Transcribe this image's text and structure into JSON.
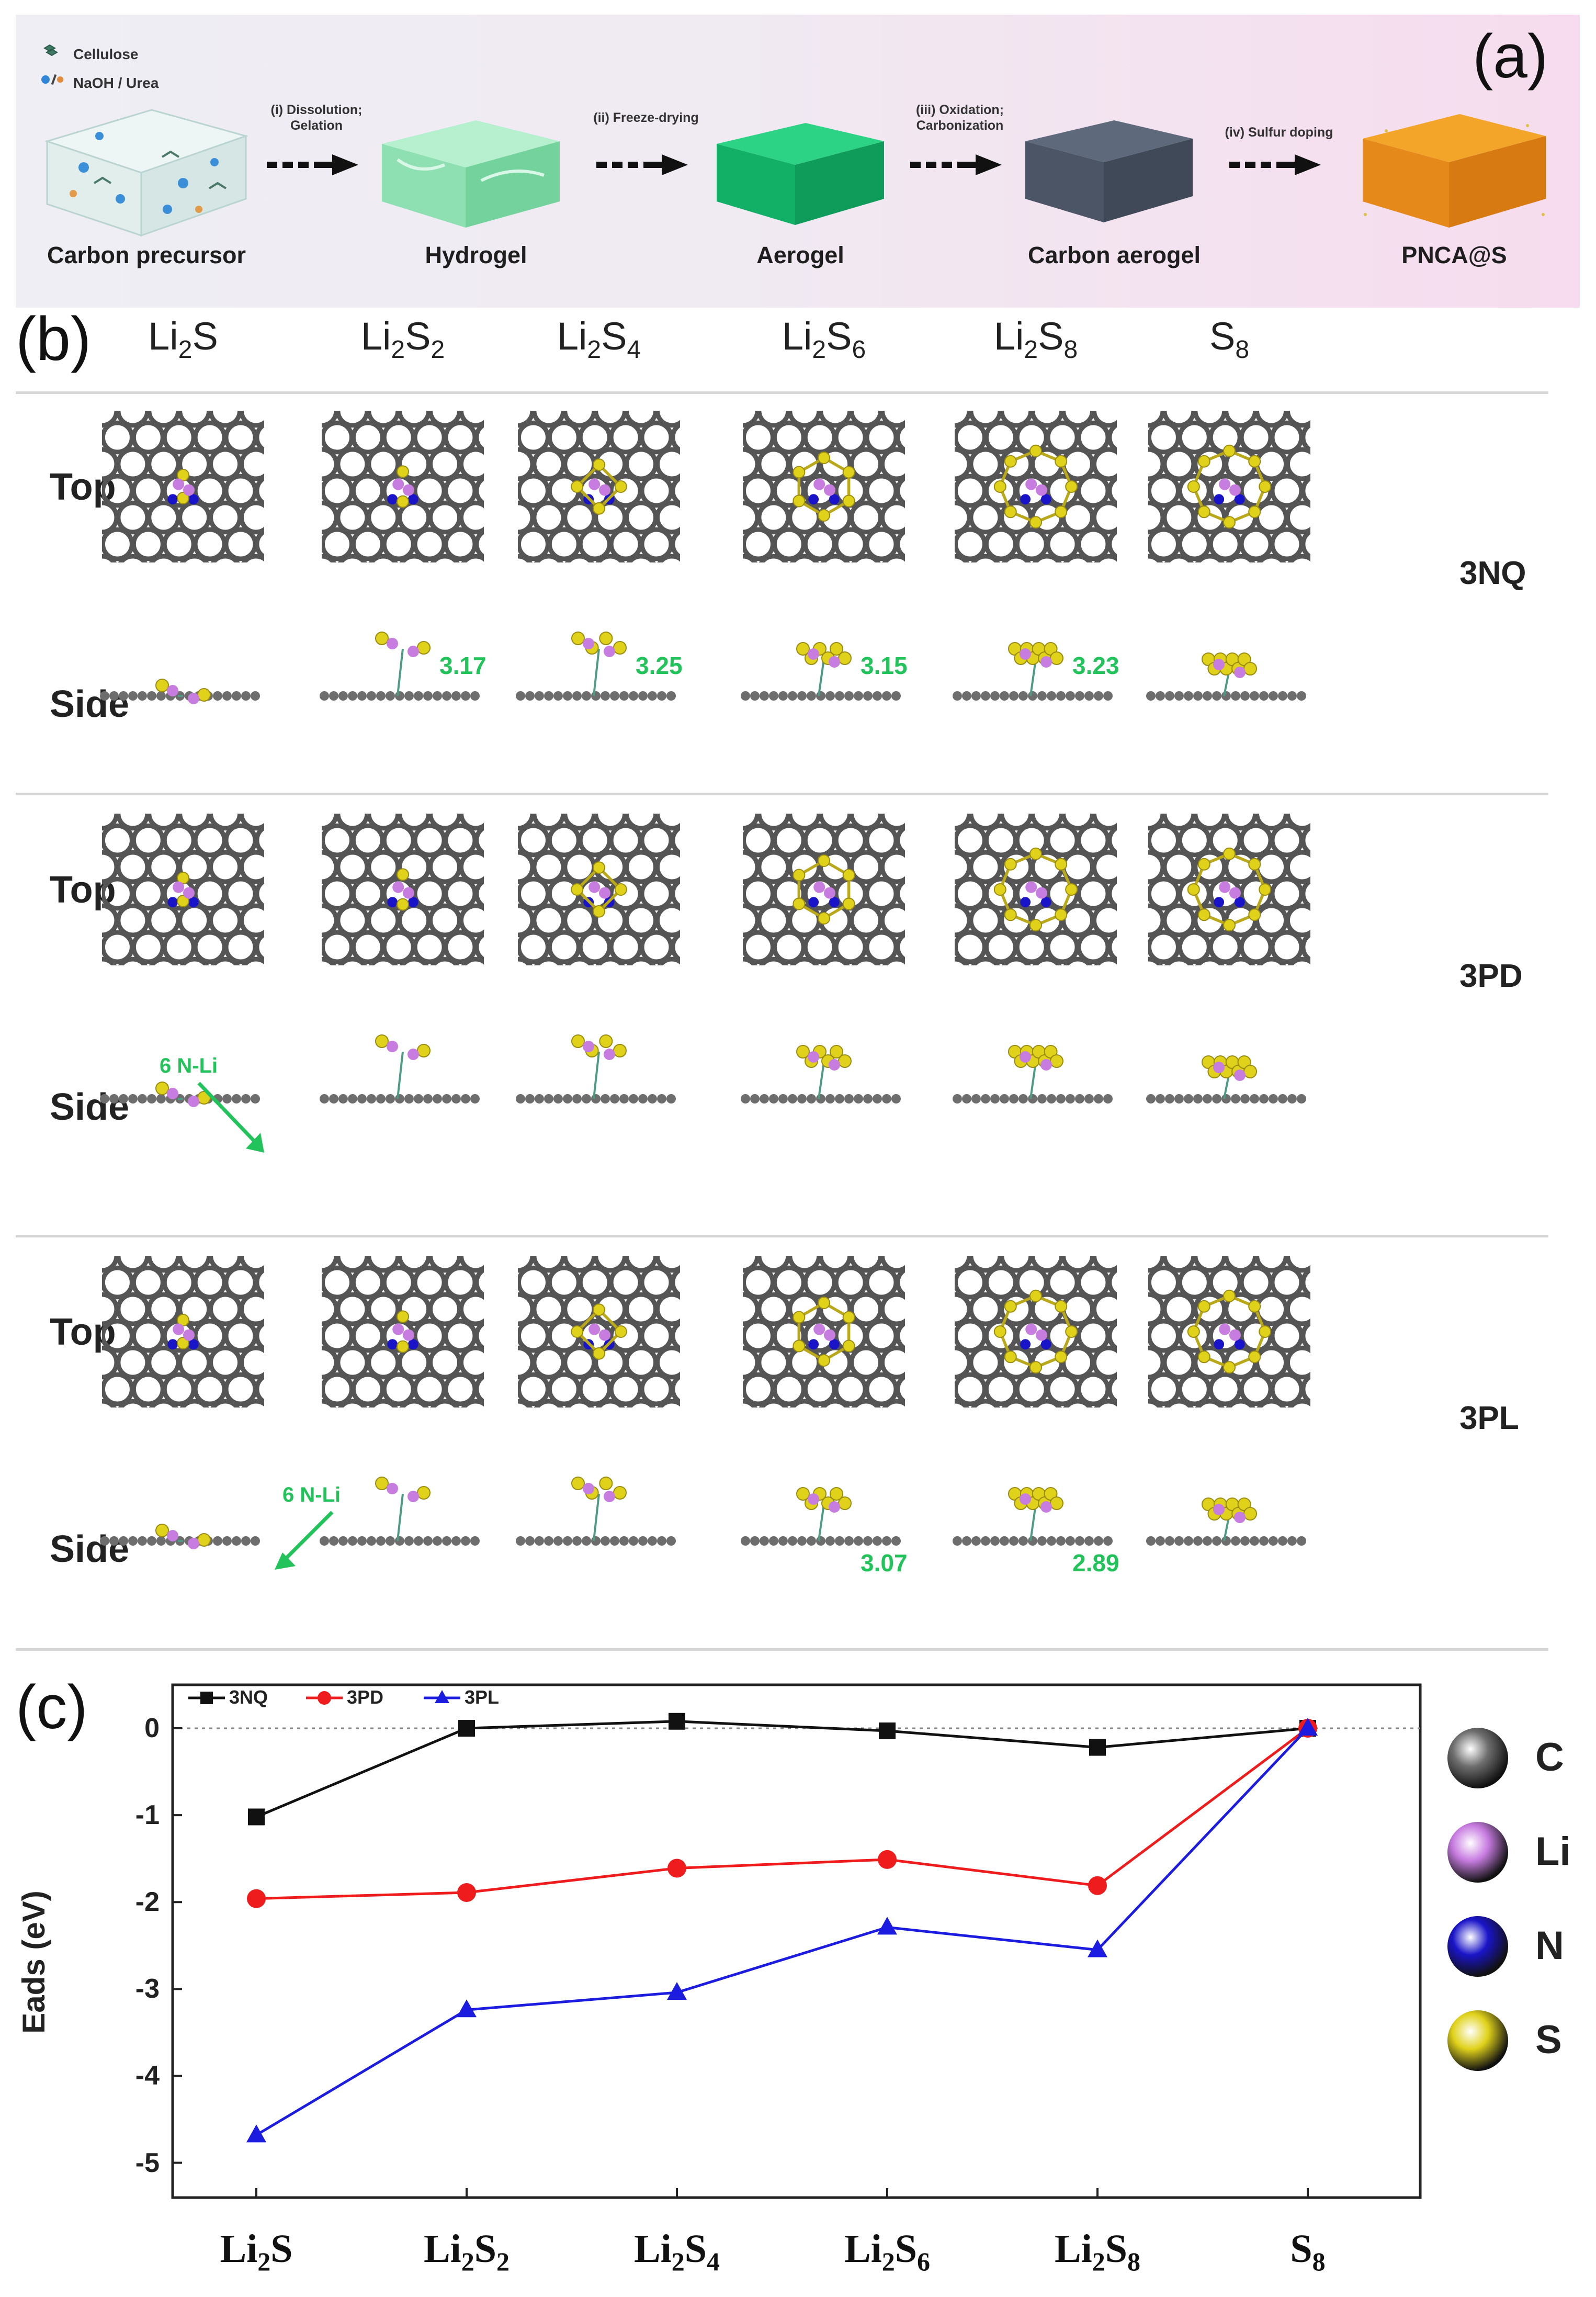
{
  "panel_a": {
    "letter": "(a)",
    "legend": [
      "Cellulose",
      "NaOH / Urea"
    ],
    "stages": [
      "Carbon precursor",
      "Hydrogel",
      "Aerogel",
      "Carbon aerogel",
      "PNCA@S"
    ],
    "steps": [
      {
        "line1": "(i) Dissolution;",
        "line2": "Gelation"
      },
      {
        "line1": "(ii) Freeze-drying",
        "line2": ""
      },
      {
        "line1": "(iii) Oxidation;",
        "line2": "Carbonization"
      },
      {
        "line1": "(iv) Sulfur doping",
        "line2": ""
      }
    ]
  },
  "panel_b": {
    "letter": "(b)",
    "columns": [
      {
        "main": "Li",
        "sub1": "2",
        "mid": "S",
        "sub2": ""
      },
      {
        "main": "Li",
        "sub1": "2",
        "mid": "S",
        "sub2": "2"
      },
      {
        "main": "Li",
        "sub1": "2",
        "mid": "S",
        "sub2": "4"
      },
      {
        "main": "Li",
        "sub1": "2",
        "mid": "S",
        "sub2": "6"
      },
      {
        "main": "Li",
        "sub1": "2",
        "mid": "S",
        "sub2": "8"
      },
      {
        "main": "S",
        "sub1": "8",
        "mid": "",
        "sub2": ""
      }
    ],
    "row_top": "Top",
    "row_side": "Side",
    "groups": [
      {
        "name": "3NQ",
        "distances": [
          "",
          "3.17",
          "3.25",
          "3.15",
          "3.23",
          ""
        ],
        "annotation": ""
      },
      {
        "name": "3PD",
        "distances": [
          "",
          "",
          "",
          "",
          "",
          ""
        ],
        "annotation": "6 N-Li"
      },
      {
        "name": "3PL",
        "distances": [
          "",
          "",
          "",
          "3.07",
          "2.89",
          ""
        ],
        "annotation": "6 N-Li"
      }
    ]
  },
  "panel_c": {
    "letter": "(c)",
    "atoms": [
      {
        "symbol": "C",
        "color": "#6e6e6e"
      },
      {
        "symbol": "Li",
        "color": "#c77ce0"
      },
      {
        "symbol": "N",
        "color": "#1a14c8"
      },
      {
        "symbol": "S",
        "color": "#e0d21a"
      }
    ]
  },
  "chart_data": {
    "type": "line",
    "ylabel": "Eads (eV)",
    "xlabel": "",
    "categories": [
      {
        "main": "Li",
        "sub1": "2",
        "mid": "S",
        "sub2": ""
      },
      {
        "main": "Li",
        "sub1": "2",
        "mid": "S",
        "sub2": "2"
      },
      {
        "main": "Li",
        "sub1": "2",
        "mid": "S",
        "sub2": "4"
      },
      {
        "main": "Li",
        "sub1": "2",
        "mid": "S",
        "sub2": "6"
      },
      {
        "main": "Li",
        "sub1": "2",
        "mid": "S",
        "sub2": "8"
      },
      {
        "main": "S",
        "sub1": "8",
        "mid": "",
        "sub2": ""
      }
    ],
    "ylim": [
      -5.4,
      0.5
    ],
    "yticks": [
      0,
      -1,
      -2,
      -3,
      -4,
      -5
    ],
    "reference_line": 0,
    "legend_position": "top-left",
    "series": [
      {
        "name": "3NQ",
        "color": "#111111",
        "marker": "square",
        "values": [
          -1.02,
          0.0,
          0.08,
          -0.03,
          -0.22,
          0.0
        ]
      },
      {
        "name": "3PD",
        "color": "#ee1c1c",
        "marker": "circle",
        "values": [
          -1.96,
          -1.89,
          -1.61,
          -1.51,
          -1.81,
          0.0
        ]
      },
      {
        "name": "3PL",
        "color": "#1c1ce0",
        "marker": "triangle",
        "values": [
          -4.68,
          -3.24,
          -3.04,
          -2.29,
          -2.55,
          0.0
        ]
      }
    ]
  }
}
